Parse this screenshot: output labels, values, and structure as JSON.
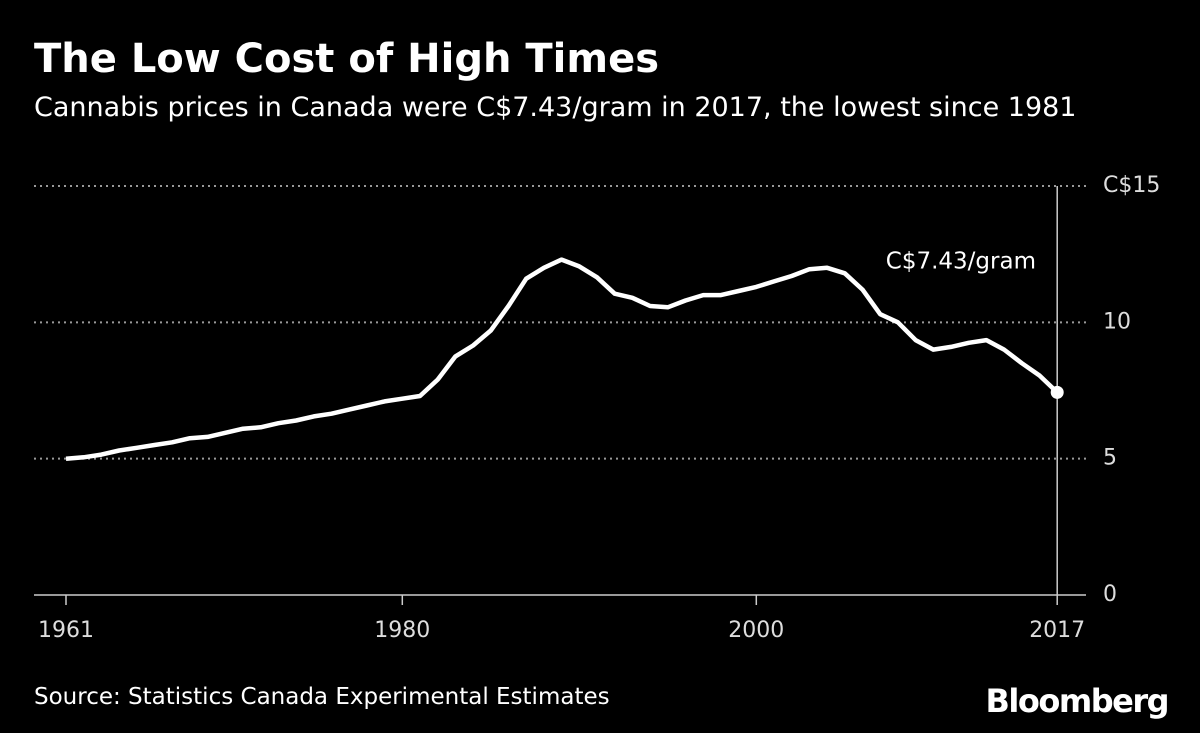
{
  "chart_data": {
    "type": "line",
    "title": "The Low Cost of High Times",
    "subtitle": "Cannabis prices in Canada were C$7.43/gram in 2017, the lowest since 1981",
    "source": "Source: Statistics Canada Experimental Estimates",
    "brand": "Bloomberg",
    "annotation": "C$7.43/gram",
    "x": [
      1961,
      1962,
      1963,
      1964,
      1965,
      1966,
      1967,
      1968,
      1969,
      1970,
      1971,
      1972,
      1973,
      1974,
      1975,
      1976,
      1977,
      1978,
      1979,
      1980,
      1981,
      1982,
      1983,
      1984,
      1985,
      1986,
      1987,
      1988,
      1989,
      1990,
      1991,
      1992,
      1993,
      1994,
      1995,
      1996,
      1997,
      1998,
      1999,
      2000,
      2001,
      2002,
      2003,
      2004,
      2005,
      2006,
      2007,
      2008,
      2009,
      2010,
      2011,
      2012,
      2013,
      2014,
      2015,
      2016,
      2017
    ],
    "series": [
      {
        "name": "Cannabis price",
        "color": "#ffffff",
        "values": [
          5.0,
          5.05,
          5.15,
          5.3,
          5.4,
          5.5,
          5.6,
          5.75,
          5.8,
          5.95,
          6.1,
          6.15,
          6.3,
          6.4,
          6.55,
          6.65,
          6.8,
          6.95,
          7.1,
          7.2,
          7.3,
          7.9,
          8.75,
          9.15,
          9.7,
          10.6,
          11.6,
          12.0,
          12.3,
          12.05,
          11.65,
          11.05,
          10.9,
          10.6,
          10.55,
          10.8,
          11.0,
          11.0,
          11.15,
          11.3,
          11.5,
          11.7,
          11.95,
          12.0,
          11.8,
          11.2,
          10.3,
          10.0,
          9.35,
          9.0,
          9.1,
          9.25,
          9.35,
          9.0,
          8.5,
          8.05,
          7.43
        ]
      }
    ],
    "xlim": [
      1959,
      2019
    ],
    "xticks": [
      1961,
      1980,
      2000,
      2017
    ],
    "ylim": [
      0,
      15
    ],
    "yticks": [
      0,
      5,
      10,
      {
        "value": 15,
        "label": "C$15"
      }
    ],
    "grid": true
  }
}
